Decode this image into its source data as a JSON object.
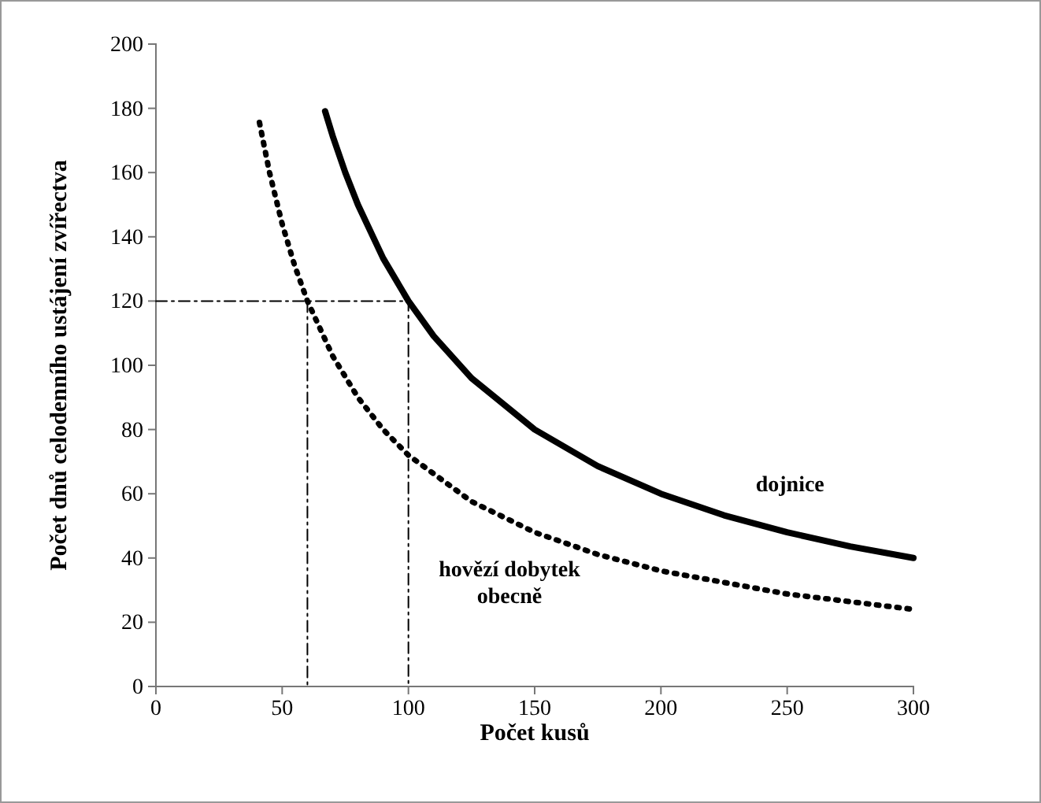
{
  "chart_data": {
    "type": "line",
    "xlabel": "Počet kusů",
    "ylabel": "Počet dnů celodenního ustájení zvířectva",
    "xlim": [
      0,
      300
    ],
    "xticks": [
      0,
      50,
      100,
      150,
      200,
      250,
      300
    ],
    "ylim": [
      0,
      200
    ],
    "yticks": [
      0,
      20,
      40,
      60,
      80,
      100,
      120,
      140,
      160,
      180,
      200
    ],
    "grid": false,
    "marker": "none",
    "series": [
      {
        "name": "dojnice",
        "color": "#000000",
        "line_style": "solid",
        "x": [
          67,
          70,
          75,
          80,
          90,
          100,
          110,
          125,
          150,
          175,
          200,
          225,
          250,
          275,
          300
        ],
        "values": [
          179.1,
          171.4,
          160,
          150,
          133.3,
          120,
          109.1,
          96,
          80,
          68.6,
          60,
          53.3,
          48,
          43.6,
          40
        ]
      },
      {
        "name": "hovězí dobytek obecně",
        "color": "#000000",
        "line_style": "dotted",
        "x": [
          41,
          45,
          50,
          55,
          60,
          70,
          80,
          90,
          100,
          125,
          150,
          175,
          200,
          250,
          300
        ],
        "values": [
          175.6,
          160,
          144,
          130.9,
          120,
          102.9,
          90,
          80,
          72,
          57.6,
          48,
          41.1,
          36,
          28.8,
          24
        ]
      },
      {
        "color": "#000000",
        "line_style": "dashed",
        "x": [
          0,
          100,
          100
        ],
        "values": [
          120,
          120,
          0
        ]
      },
      {
        "color": "#000000",
        "line_style": "dashed",
        "x": [
          60,
          60
        ],
        "values": [
          120,
          0
        ]
      }
    ]
  }
}
